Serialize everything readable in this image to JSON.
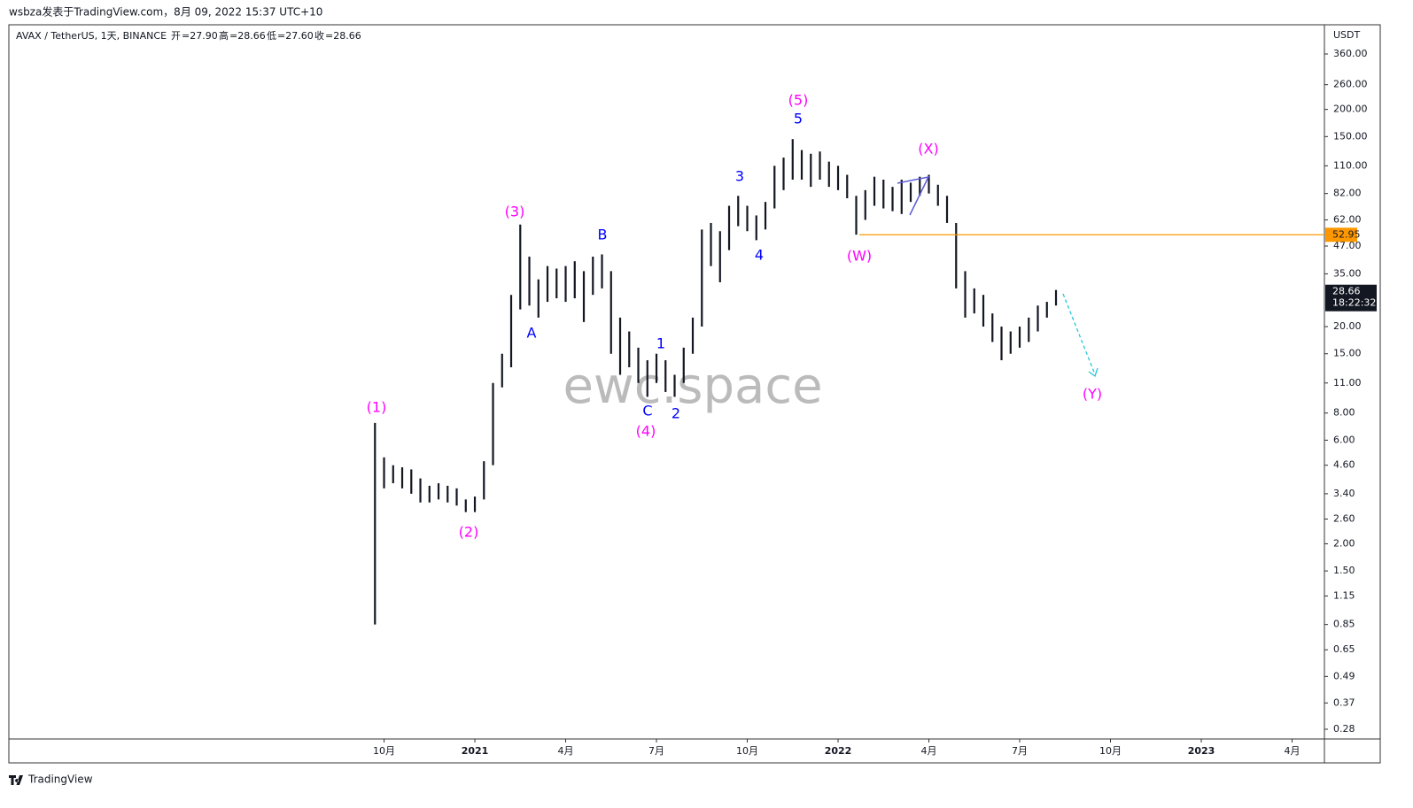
{
  "header": {
    "byline": "wsbza发表于TradingView.com，8月 09, 2022 15:37 UTC+10",
    "symbol": "AVAX / TetherUS, 1天, BINANCE",
    "ohlc_legend": [
      {
        "label": "开",
        "value": "=27.90"
      },
      {
        "label": "高",
        "value": "=28.66"
      },
      {
        "label": "低",
        "value": "=27.60"
      },
      {
        "label": "收",
        "value": "=28.66"
      }
    ],
    "watermark": "ewc.space",
    "brand": "TradingView"
  },
  "chart_data": {
    "type": "ohlc",
    "color": "#131722",
    "log_scale": true,
    "y_unit": "USDT",
    "x": [
      2020.725,
      2020.75,
      2020.775,
      2020.8,
      2020.825,
      2020.85,
      2020.875,
      2020.9,
      2020.925,
      2020.95,
      2020.975,
      2021.0,
      2021.025,
      2021.05,
      2021.075,
      2021.1,
      2021.125,
      2021.15,
      2021.175,
      2021.2,
      2021.225,
      2021.25,
      2021.275,
      2021.3,
      2021.325,
      2021.35,
      2021.375,
      2021.4,
      2021.425,
      2021.45,
      2021.475,
      2021.5,
      2021.525,
      2021.55,
      2021.575,
      2021.6,
      2021.625,
      2021.65,
      2021.675,
      2021.7,
      2021.725,
      2021.75,
      2021.775,
      2021.8,
      2021.825,
      2021.85,
      2021.875,
      2021.9,
      2021.925,
      2021.95,
      2021.975,
      2022.0,
      2022.025,
      2022.05,
      2022.075,
      2022.1,
      2022.125,
      2022.15,
      2022.175,
      2022.2,
      2022.225,
      2022.25,
      2022.275,
      2022.3,
      2022.325,
      2022.35,
      2022.375,
      2022.4,
      2022.425,
      2022.45,
      2022.475,
      2022.5,
      2022.525,
      2022.55,
      2022.575,
      2022.6
    ],
    "high": [
      7.2,
      5.0,
      4.6,
      4.5,
      4.4,
      4.0,
      3.7,
      3.8,
      3.7,
      3.6,
      3.2,
      3.3,
      4.8,
      11,
      15,
      28,
      59,
      42,
      33,
      38,
      37,
      38,
      40,
      36,
      42,
      43,
      36,
      22,
      19,
      16,
      14,
      15,
      14,
      12,
      16,
      22,
      56,
      60,
      55,
      72,
      80,
      72,
      65,
      75,
      110,
      120,
      146,
      130,
      125,
      128,
      115,
      110,
      100,
      80,
      85,
      98,
      95,
      88,
      95,
      92,
      98,
      100,
      90,
      80,
      60,
      36,
      30,
      28,
      23,
      20,
      19,
      20,
      22,
      25,
      26,
      29.5
    ],
    "low": [
      0.85,
      3.6,
      3.8,
      3.6,
      3.4,
      3.1,
      3.1,
      3.2,
      3.1,
      3.0,
      2.8,
      2.8,
      3.2,
      4.6,
      10.5,
      13,
      24,
      25,
      22,
      26,
      27,
      26,
      27,
      21,
      28,
      30,
      15,
      12,
      13,
      11,
      9.5,
      11,
      10,
      9.5,
      11,
      15,
      20,
      38,
      32,
      45,
      58,
      55,
      50,
      56,
      70,
      85,
      95,
      95,
      88,
      95,
      88,
      85,
      78,
      53,
      62,
      72,
      70,
      68,
      66,
      75,
      80,
      82,
      72,
      60,
      30,
      22,
      23,
      20,
      17,
      14,
      15,
      16,
      17,
      19,
      22,
      25
    ],
    "hline": {
      "value": 52.95,
      "color": "#ff9800"
    },
    "last_price": {
      "value": 28.66,
      "countdown": "18:22:32"
    },
    "annotations": [
      "(1)",
      "(2)",
      "(3)",
      "A",
      "B",
      "C",
      "(4)",
      "1",
      "2",
      "3",
      "4",
      "5",
      "(5)",
      "(W)",
      "(X)",
      "(Y)"
    ],
    "xlim": [
      2019.717,
      2023.339
    ],
    "xticks": [
      {
        "value": 2020.75,
        "label": "10月"
      },
      {
        "value": 2021,
        "label": "2021"
      },
      {
        "value": 2021.25,
        "label": "4月"
      },
      {
        "value": 2021.5,
        "label": "7月"
      },
      {
        "value": 2021.75,
        "label": "10月"
      },
      {
        "value": 2022,
        "label": "2022"
      },
      {
        "value": 2022.25,
        "label": "4月"
      },
      {
        "value": 2022.5,
        "label": "7月"
      },
      {
        "value": 2022.75,
        "label": "10月"
      },
      {
        "value": 2023,
        "label": "2023"
      },
      {
        "value": 2023.25,
        "label": "4月"
      }
    ],
    "ylim": [
      0.28,
      360
    ],
    "yticks": [
      {
        "value": 360,
        "label": "360.00"
      },
      {
        "value": 260,
        "label": "260.00"
      },
      {
        "value": 200,
        "label": "200.00"
      },
      {
        "value": 150,
        "label": "150.00"
      },
      {
        "value": 110,
        "label": "110.00"
      },
      {
        "value": 82,
        "label": "82.00"
      },
      {
        "value": 62,
        "label": "62.00"
      },
      {
        "value": 47,
        "label": "47.00"
      },
      {
        "value": 35,
        "label": "35.00"
      },
      {
        "value": 20,
        "label": "20.00"
      },
      {
        "value": 15,
        "label": "15.00"
      },
      {
        "value": 11,
        "label": "11.00"
      },
      {
        "value": 8,
        "label": "8.00"
      },
      {
        "value": 6,
        "label": "6.00"
      },
      {
        "value": 4.6,
        "label": "4.60"
      },
      {
        "value": 3.4,
        "label": "3.40"
      },
      {
        "value": 2.6,
        "label": "2.60"
      },
      {
        "value": 2,
        "label": "2.00"
      },
      {
        "value": 1.5,
        "label": "1.50"
      },
      {
        "value": 1.15,
        "label": "1.15"
      },
      {
        "value": 0.85,
        "label": "0.85"
      },
      {
        "value": 0.65,
        "label": "0.65"
      },
      {
        "value": 0.49,
        "label": "0.49"
      },
      {
        "value": 0.37,
        "label": "0.37"
      },
      {
        "value": 0.28,
        "label": "0.28"
      }
    ]
  }
}
